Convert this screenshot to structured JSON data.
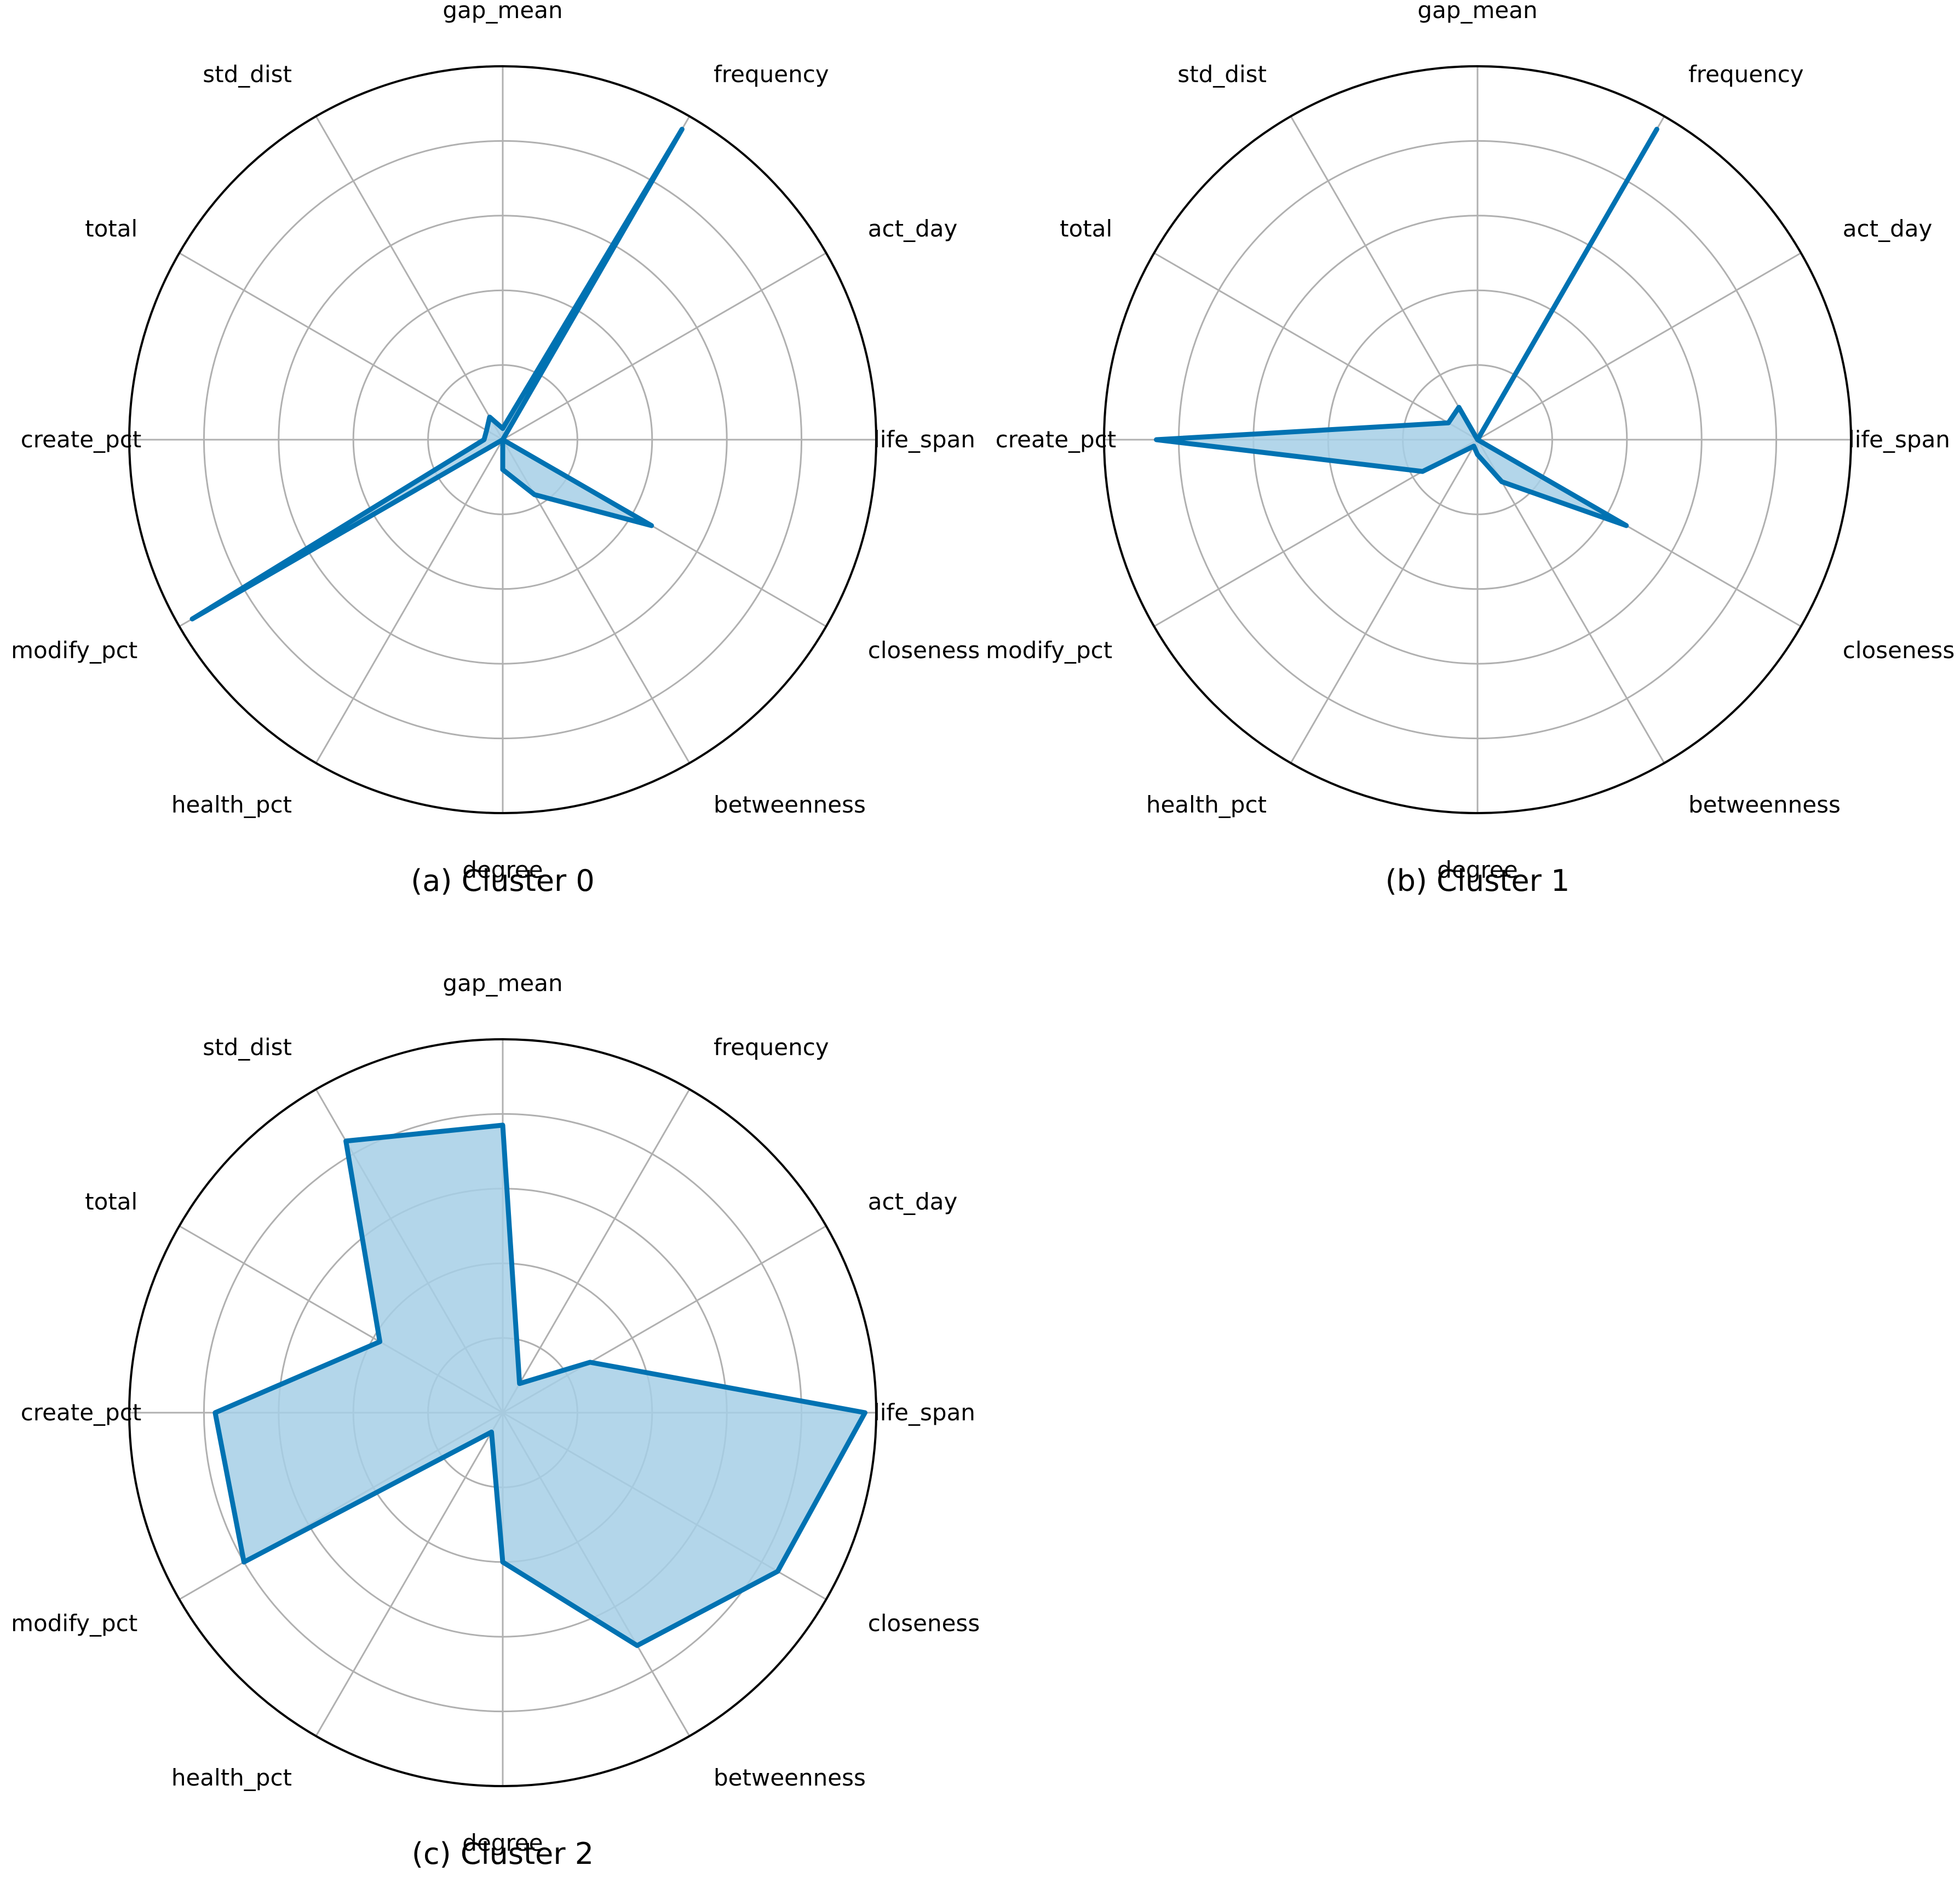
{
  "colors": {
    "line": "#0072b2",
    "fill": "#a6cfe6",
    "grid": "#b0b0b0",
    "frame": "#000000"
  },
  "chart_data": [
    {
      "type": "radar",
      "caption": "(a) Cluster 0",
      "axes": [
        "gap_mean",
        "frequency",
        "act_day",
        "life_span",
        "closeness",
        "betweenness",
        "degree",
        "health_pct",
        "modify_pct",
        "create_pct",
        "total",
        "std_dist"
      ],
      "series": [
        {
          "values": [
            0.03,
            0.96,
            0.0,
            0.0,
            0.46,
            0.17,
            0.08,
            0.0,
            0.96,
            0.05,
            0.05,
            0.07
          ]
        }
      ],
      "rlim": [
        0,
        1
      ],
      "rings": 5,
      "grid": true
    },
    {
      "type": "radar",
      "caption": "(b) Cluster 1",
      "axes": [
        "gap_mean",
        "frequency",
        "act_day",
        "life_span",
        "closeness",
        "betweenness",
        "degree",
        "health_pct",
        "modify_pct",
        "create_pct",
        "total",
        "std_dist"
      ],
      "series": [
        {
          "values": [
            0.0,
            0.96,
            0.0,
            0.0,
            0.46,
            0.13,
            0.04,
            0.02,
            0.17,
            0.86,
            0.09,
            0.1
          ]
        }
      ],
      "rlim": [
        0,
        1
      ],
      "rings": 5,
      "grid": true
    },
    {
      "type": "radar",
      "caption": "(c) Cluster 2",
      "axes": [
        "gap_mean",
        "frequency",
        "act_day",
        "life_span",
        "closeness",
        "betweenness",
        "degree",
        "health_pct",
        "modify_pct",
        "create_pct",
        "total",
        "std_dist"
      ],
      "series": [
        {
          "values": [
            0.77,
            0.09,
            0.27,
            0.97,
            0.85,
            0.72,
            0.4,
            0.06,
            0.8,
            0.77,
            0.38,
            0.84
          ]
        }
      ],
      "rlim": [
        0,
        1
      ],
      "rings": 5,
      "grid": true
    }
  ]
}
